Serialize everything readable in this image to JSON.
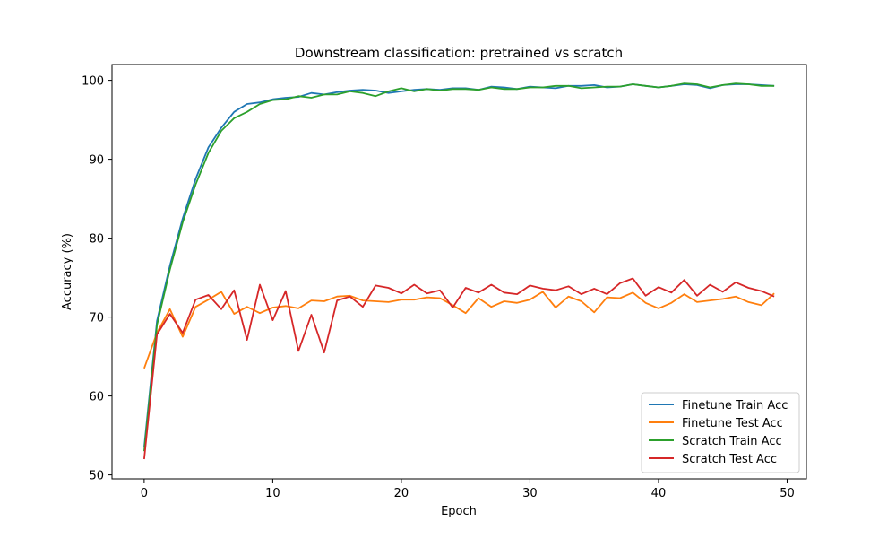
{
  "chart_data": {
    "type": "line",
    "title": "Downstream classification: pretrained vs scratch",
    "xlabel": "Epoch",
    "ylabel": "Accuracy (%)",
    "xlim": [
      -2.5,
      51.5
    ],
    "ylim": [
      49.5,
      102.0
    ],
    "xticks": [
      0,
      10,
      20,
      30,
      40,
      50
    ],
    "yticks": [
      50,
      60,
      70,
      80,
      90,
      100
    ],
    "grid": false,
    "legend_position": "lower-right",
    "x": [
      0,
      1,
      2,
      3,
      4,
      5,
      6,
      7,
      8,
      9,
      10,
      11,
      12,
      13,
      14,
      15,
      16,
      17,
      18,
      19,
      20,
      21,
      22,
      23,
      24,
      25,
      26,
      27,
      28,
      29,
      30,
      31,
      32,
      33,
      34,
      35,
      36,
      37,
      38,
      39,
      40,
      41,
      42,
      43,
      44,
      45,
      46,
      47,
      48,
      49
    ],
    "series": [
      {
        "name": "Finetune Train Acc",
        "color": "#1f77b4",
        "values": [
          53.5,
          69.5,
          76.5,
          82.5,
          87.5,
          91.5,
          94.0,
          96.0,
          97.0,
          97.2,
          97.6,
          97.8,
          97.9,
          98.4,
          98.2,
          98.5,
          98.7,
          98.8,
          98.7,
          98.4,
          98.6,
          98.8,
          98.9,
          98.8,
          99.0,
          99.0,
          98.8,
          99.2,
          99.1,
          98.9,
          99.2,
          99.1,
          99.0,
          99.3,
          99.3,
          99.4,
          99.1,
          99.2,
          99.5,
          99.3,
          99.1,
          99.3,
          99.5,
          99.4,
          99.0,
          99.4,
          99.5,
          99.5,
          99.4,
          99.3
        ]
      },
      {
        "name": "Finetune Test Acc",
        "color": "#ff7f0e",
        "values": [
          63.5,
          68.0,
          71.0,
          67.5,
          71.3,
          72.2,
          73.2,
          70.4,
          71.3,
          70.5,
          71.2,
          71.4,
          71.1,
          72.1,
          72.0,
          72.6,
          72.7,
          72.1,
          72.0,
          71.9,
          72.2,
          72.2,
          72.5,
          72.4,
          71.5,
          70.5,
          72.4,
          71.3,
          72.0,
          71.8,
          72.2,
          73.2,
          71.2,
          72.6,
          72.0,
          70.6,
          72.5,
          72.4,
          73.1,
          71.8,
          71.1,
          71.8,
          72.9,
          71.9,
          72.1,
          72.3,
          72.6,
          71.9,
          71.5,
          73.0
        ]
      },
      {
        "name": "Scratch Train Acc",
        "color": "#2ca02c",
        "values": [
          53.0,
          69.0,
          76.0,
          82.0,
          86.8,
          90.8,
          93.6,
          95.2,
          96.0,
          97.0,
          97.5,
          97.6,
          98.0,
          97.8,
          98.2,
          98.2,
          98.6,
          98.4,
          98.0,
          98.6,
          99.0,
          98.6,
          98.9,
          98.7,
          98.9,
          98.9,
          98.8,
          99.1,
          98.9,
          98.9,
          99.1,
          99.1,
          99.3,
          99.3,
          99.0,
          99.1,
          99.2,
          99.2,
          99.5,
          99.3,
          99.1,
          99.3,
          99.6,
          99.5,
          99.1,
          99.4,
          99.6,
          99.5,
          99.3,
          99.3
        ]
      },
      {
        "name": "Scratch Test Acc",
        "color": "#d62728",
        "values": [
          52.0,
          67.8,
          70.4,
          68.0,
          72.2,
          72.8,
          71.0,
          73.4,
          67.1,
          74.1,
          69.6,
          73.3,
          65.7,
          70.3,
          65.5,
          72.1,
          72.6,
          71.3,
          74.0,
          73.7,
          73.0,
          74.1,
          73.0,
          73.4,
          71.2,
          73.7,
          73.1,
          74.1,
          73.1,
          72.9,
          74.0,
          73.6,
          73.4,
          73.9,
          72.9,
          73.6,
          72.9,
          74.3,
          74.9,
          72.7,
          73.8,
          73.1,
          74.7,
          72.7,
          74.1,
          73.2,
          74.4,
          73.7,
          73.3,
          72.6
        ]
      }
    ]
  }
}
